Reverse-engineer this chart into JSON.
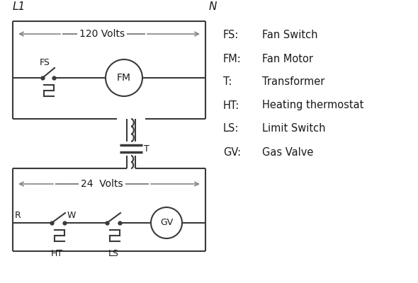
{
  "bg_color": "#ffffff",
  "line_color": "#3a3a3a",
  "arrow_color": "#888888",
  "text_color": "#1a1a1a",
  "legend_items": [
    [
      "FS:",
      "Fan Switch"
    ],
    [
      "FM:",
      "Fan Motor"
    ],
    [
      "T:",
      "Transformer"
    ],
    [
      "HT:",
      "Heating thermostat"
    ],
    [
      "LS:",
      "Limit Switch"
    ],
    [
      "GV:",
      "Gas Valve"
    ]
  ],
  "L1_label": "L1",
  "N_label": "N",
  "volts120": "120 Volts",
  "volts24": "24  Volts"
}
